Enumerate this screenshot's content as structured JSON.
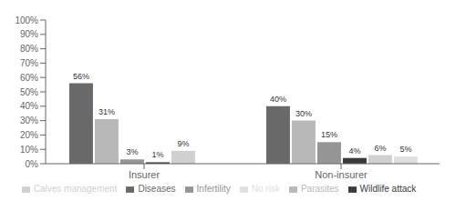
{
  "chart_data": {
    "type": "bar",
    "categories": [
      "Insurer",
      "Non-insurer"
    ],
    "series": [
      {
        "name": "Diseases",
        "color": "#696969",
        "values": [
          56,
          40
        ],
        "value_labels": [
          "56%",
          "40%"
        ]
      },
      {
        "name": "Parasites",
        "color": "#b8b8b8",
        "values": [
          31,
          30
        ],
        "value_labels": [
          "31%",
          "30%"
        ]
      },
      {
        "name": "Infertility",
        "color": "#959595",
        "values": [
          3,
          15
        ],
        "value_labels": [
          "3%",
          "15%"
        ]
      },
      {
        "name": "Wildlife attack",
        "color": "#3a3a3a",
        "values": [
          1,
          4
        ],
        "value_labels": [
          "1%",
          "4%"
        ]
      },
      {
        "name": "Calves management",
        "color": "#d0d0d0",
        "values": [
          9,
          6
        ],
        "value_labels": [
          "9%",
          "6%"
        ]
      },
      {
        "name": "No risk",
        "color": "#e0e0e0",
        "values": [
          0,
          5
        ],
        "value_labels": [
          "0%",
          "5%"
        ]
      }
    ],
    "ylim": [
      0,
      100
    ],
    "yticks": [
      {
        "value": 0,
        "label": "0%"
      },
      {
        "value": 10,
        "label": "10%"
      },
      {
        "value": 20,
        "label": "20%"
      },
      {
        "value": 30,
        "label": "30%"
      },
      {
        "value": 40,
        "label": "40%"
      },
      {
        "value": 50,
        "label": "50%"
      },
      {
        "value": 60,
        "label": "60%"
      },
      {
        "value": 70,
        "label": "70%"
      },
      {
        "value": 80,
        "label": "80%"
      },
      {
        "value": 90,
        "label": "90%"
      },
      {
        "value": 100,
        "label": "100%"
      }
    ],
    "grid": false,
    "legend": "bottom",
    "data_labels": true
  }
}
